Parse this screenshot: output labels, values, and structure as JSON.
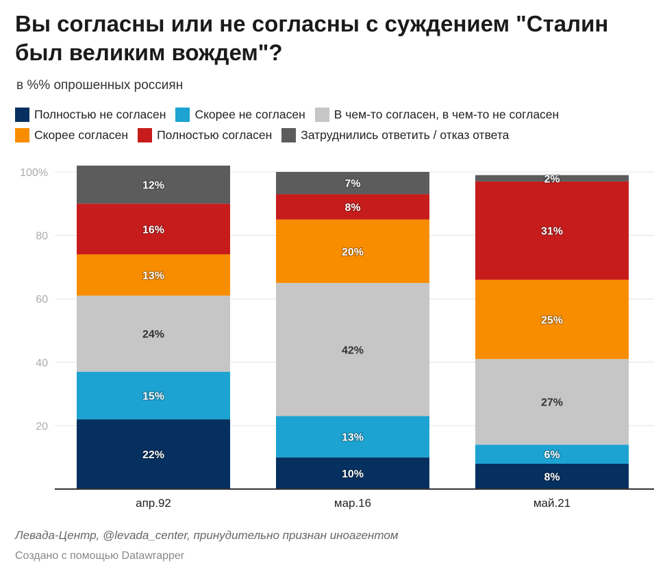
{
  "title": "Вы согласны или не согласны с суждением \"Сталин был великим вождем\"?",
  "subtitle": "в %% опрошенных россиян",
  "legend": [
    {
      "label": "Полностью не согласен",
      "color": "#06305f"
    },
    {
      "label": "Скорее не согласен",
      "color": "#1ca3d2"
    },
    {
      "label": "В чем-то согласен, в чем-то не согласен",
      "color": "#c6c6c6"
    },
    {
      "label": "Скорее согласен",
      "color": "#f98d00"
    },
    {
      "label": "Полностью согласен",
      "color": "#c71c1c"
    },
    {
      "label": "Затруднились ответить / отказ ответа",
      "color": "#5c5c5c"
    }
  ],
  "chart_data": {
    "type": "bar",
    "stacked": true,
    "categories": [
      "апр.92",
      "мар.16",
      "май.21"
    ],
    "series": [
      {
        "name": "Полностью не согласен",
        "color": "#06305f",
        "values": [
          22,
          10,
          8
        ],
        "label_color": "#ffffff"
      },
      {
        "name": "Скорее не согласен",
        "color": "#1ca3d2",
        "values": [
          15,
          13,
          6
        ],
        "label_color": "#ffffff"
      },
      {
        "name": "В чем-то согласен, в чем-то не согласен",
        "color": "#c6c6c6",
        "values": [
          24,
          42,
          27
        ],
        "label_color": "#333333"
      },
      {
        "name": "Скорее согласен",
        "color": "#f98d00",
        "values": [
          13,
          20,
          25
        ],
        "label_color": "#ffffff"
      },
      {
        "name": "Полностью согласен",
        "color": "#c71c1c",
        "values": [
          16,
          8,
          31
        ],
        "label_color": "#ffffff"
      },
      {
        "name": "Затруднились ответить / отказ ответа",
        "color": "#5c5c5c",
        "values": [
          12,
          7,
          2
        ],
        "label_color": "#ffffff"
      }
    ],
    "value_suffix": "%",
    "ylim": [
      0,
      100
    ],
    "yticks": [
      "20",
      "40",
      "60",
      "80",
      "100%"
    ],
    "grid": true,
    "legend_position": "top"
  },
  "footer": {
    "source": "Левада-Центр, @levada_center, принудительно признан иноагентом",
    "credit": "Создано с помощью Datawrapper"
  }
}
